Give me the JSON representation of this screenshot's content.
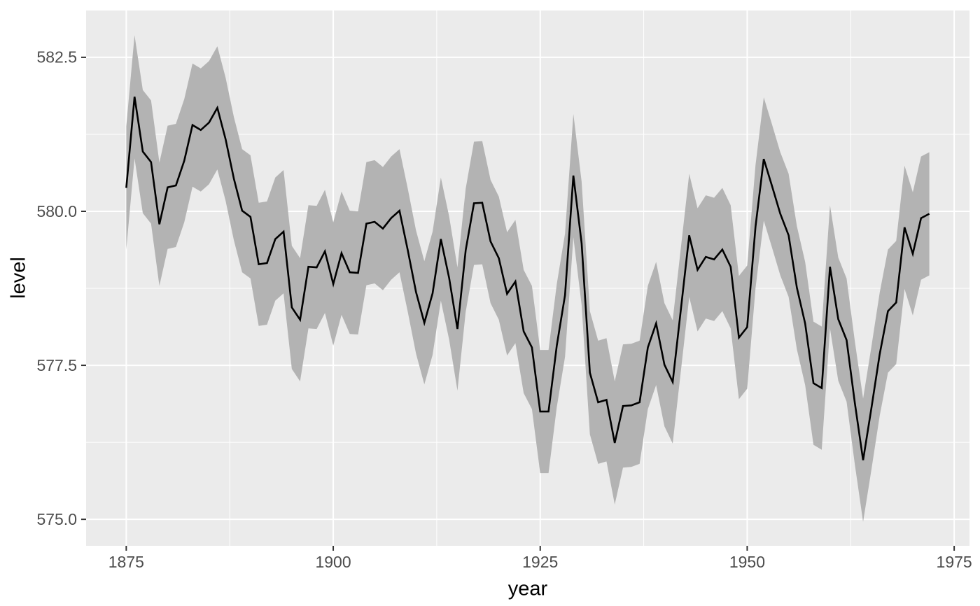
{
  "figure": {
    "background": "#FFFFFF"
  },
  "chart_data": {
    "type": "line",
    "title": "",
    "xlabel": "year",
    "ylabel": "level",
    "legend_position": "none",
    "grid": true,
    "xlim": [
      1870.15,
      1976.85
    ],
    "ylim": [
      574.57,
      583.26
    ],
    "x_ticks": {
      "values": [
        1875,
        1900,
        1925,
        1950,
        1975
      ],
      "labels": [
        "1875",
        "1900",
        "1925",
        "1950",
        "1975"
      ]
    },
    "y_ticks": {
      "values": [
        575.0,
        577.5,
        580.0,
        582.5
      ],
      "labels": [
        "575.0",
        "577.5",
        "580.0",
        "582.5"
      ]
    },
    "x_minor_ticks": [
      1887.5,
      1912.5,
      1937.5,
      1962.5
    ],
    "y_minor_ticks": [
      576.25,
      578.75,
      581.25
    ],
    "x": [
      1875,
      1876,
      1877,
      1878,
      1879,
      1880,
      1881,
      1882,
      1883,
      1884,
      1885,
      1886,
      1887,
      1888,
      1889,
      1890,
      1891,
      1892,
      1893,
      1894,
      1895,
      1896,
      1897,
      1898,
      1899,
      1900,
      1901,
      1902,
      1903,
      1904,
      1905,
      1906,
      1907,
      1908,
      1909,
      1910,
      1911,
      1912,
      1913,
      1914,
      1915,
      1916,
      1917,
      1918,
      1919,
      1920,
      1921,
      1922,
      1923,
      1924,
      1925,
      1926,
      1927,
      1928,
      1929,
      1930,
      1931,
      1932,
      1933,
      1934,
      1935,
      1936,
      1937,
      1938,
      1939,
      1940,
      1941,
      1942,
      1943,
      1944,
      1945,
      1946,
      1947,
      1948,
      1949,
      1950,
      1951,
      1952,
      1953,
      1954,
      1955,
      1956,
      1957,
      1958,
      1959,
      1960,
      1961,
      1962,
      1963,
      1964,
      1965,
      1966,
      1967,
      1968,
      1969,
      1970,
      1971,
      1972
    ],
    "series": [
      {
        "name": "level",
        "values": [
          580.38,
          581.86,
          580.97,
          580.8,
          579.79,
          580.39,
          580.42,
          580.82,
          581.4,
          581.32,
          581.44,
          581.68,
          581.17,
          580.53,
          580.01,
          579.91,
          579.14,
          579.16,
          579.55,
          579.67,
          578.44,
          578.24,
          579.1,
          579.09,
          579.35,
          578.82,
          579.32,
          579.01,
          579.0,
          579.8,
          579.83,
          579.72,
          579.89,
          580.01,
          579.37,
          578.69,
          578.19,
          578.67,
          579.55,
          578.92,
          578.09,
          579.37,
          580.13,
          580.14,
          579.51,
          579.24,
          578.66,
          578.86,
          578.05,
          577.79,
          576.75,
          576.75,
          577.82,
          578.64,
          580.58,
          579.48,
          577.38,
          576.9,
          576.94,
          576.24,
          576.84,
          576.85,
          576.9,
          577.79,
          578.18,
          577.51,
          577.23,
          578.42,
          579.61,
          579.05,
          579.26,
          579.22,
          579.38,
          579.1,
          577.95,
          578.12,
          579.75,
          580.85,
          580.41,
          579.96,
          579.61,
          578.76,
          578.18,
          577.21,
          577.13,
          579.1,
          578.25,
          577.91,
          576.89,
          575.96,
          576.8,
          577.68,
          578.38,
          578.52,
          579.74,
          579.31,
          579.89,
          579.96
        ]
      }
    ],
    "ribbon": {
      "series": "level",
      "halfwidth": 1.0,
      "description": "shaded band from level - 1 to level + 1"
    },
    "colors": {
      "panel_background": "#EBEBEB",
      "grid_major": "#FFFFFF",
      "grid_minor": "#FFFFFF",
      "ribbon_fill": "#B3B3B3",
      "line": "#000000",
      "tick_label": "#4D4D4D",
      "tick_mark": "#333333",
      "axis_title": "#000000"
    }
  }
}
